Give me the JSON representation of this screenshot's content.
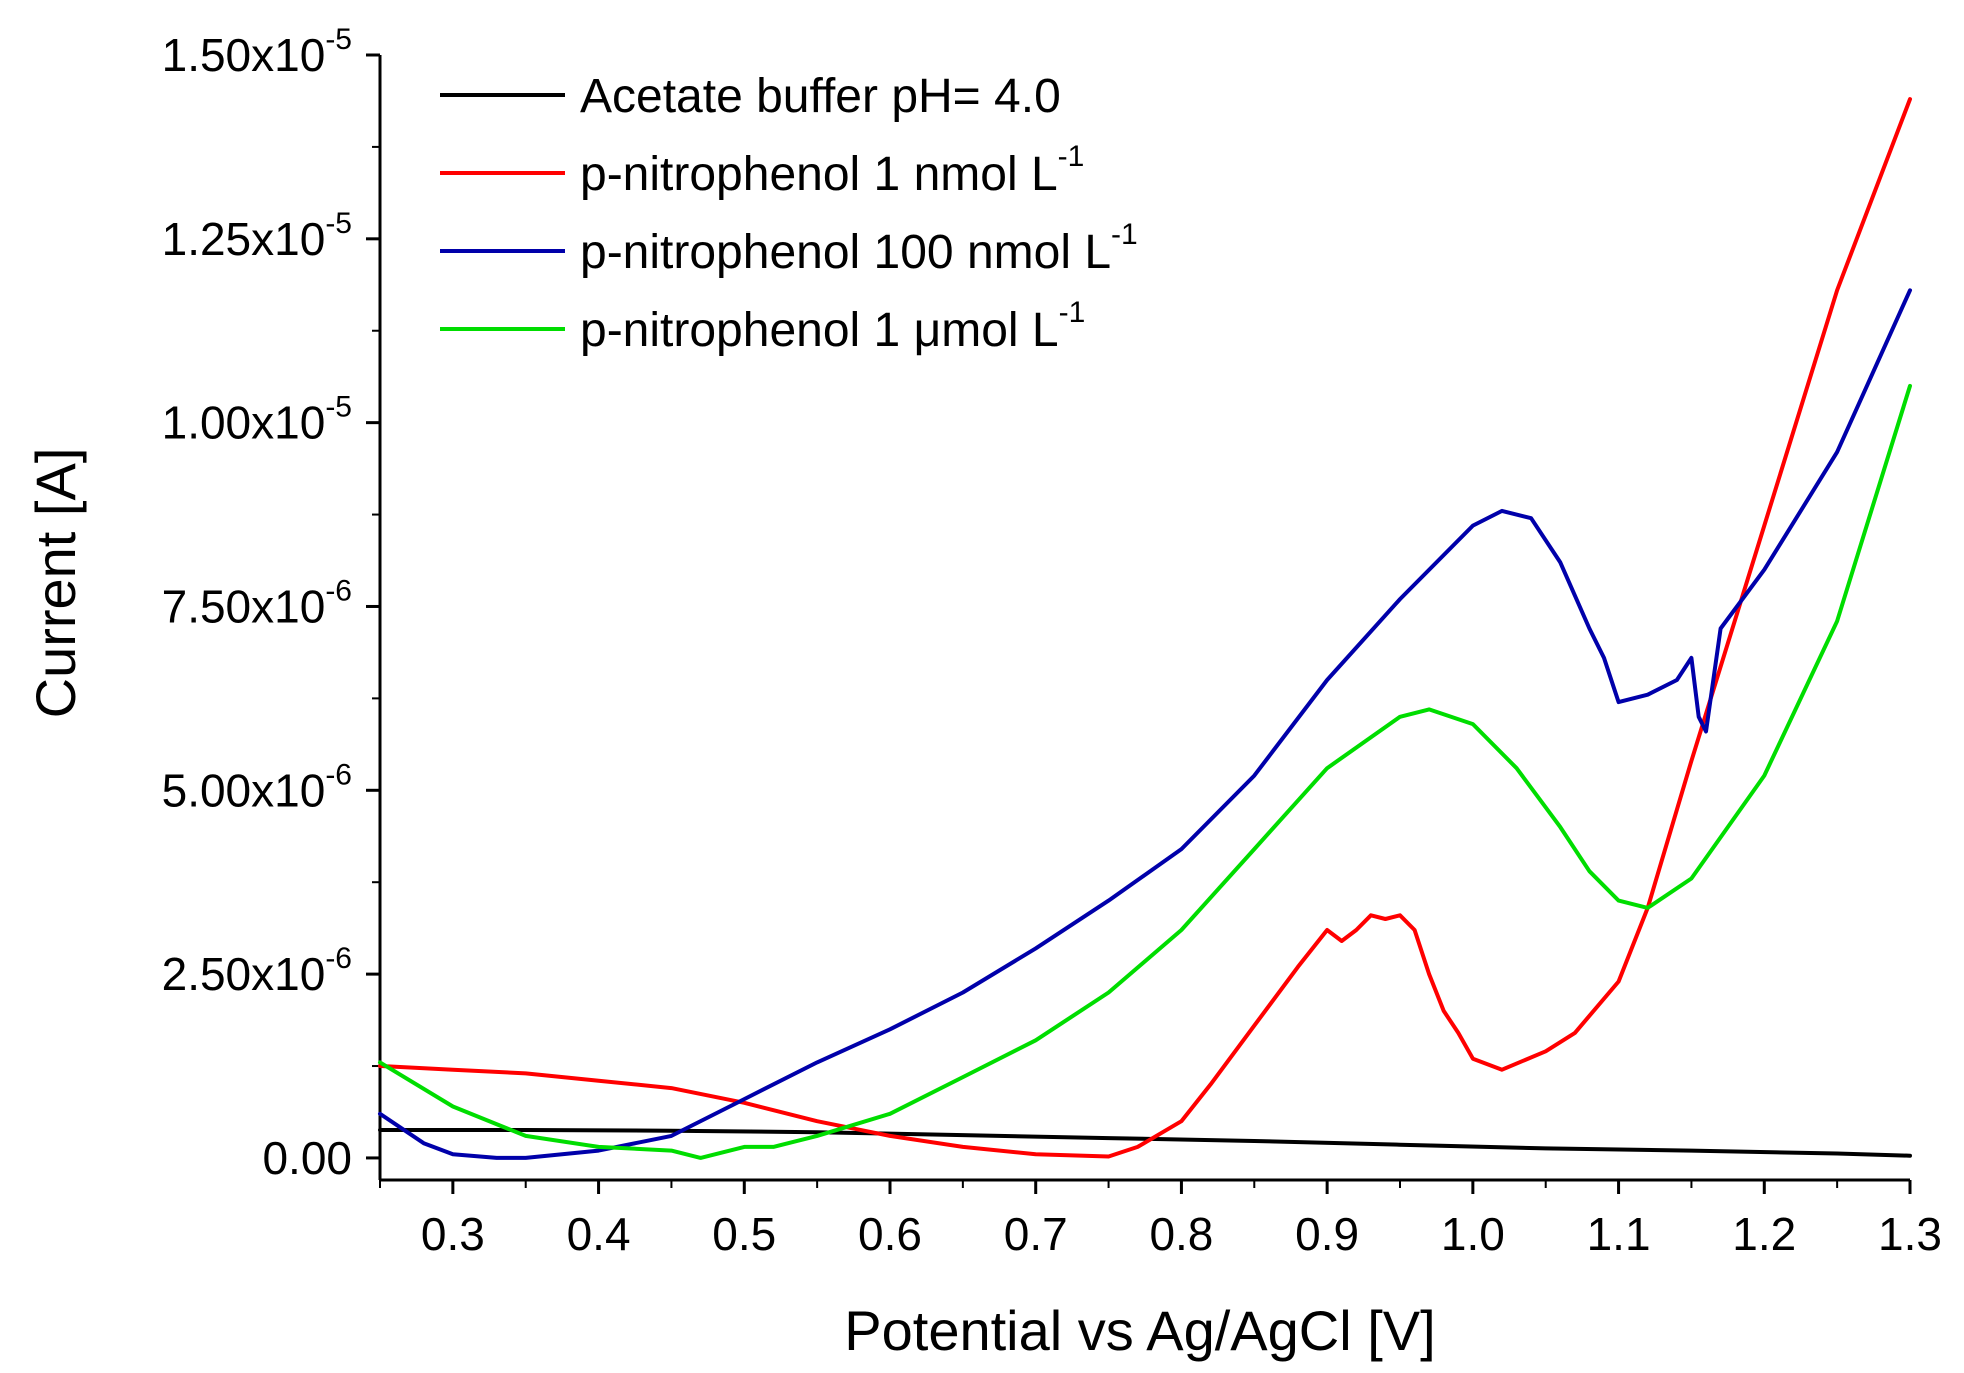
{
  "chart_data": {
    "type": "line",
    "title": "",
    "xlabel": "Potential vs Ag/AgCl [V]",
    "ylabel": "Current [A]",
    "xlim": [
      0.25,
      1.3
    ],
    "ylim": [
      -3e-07,
      1.5e-05
    ],
    "x_ticks": [
      0.3,
      0.4,
      0.5,
      0.6,
      0.7,
      0.8,
      0.9,
      1.0,
      1.1,
      1.2,
      1.3
    ],
    "x_tick_labels": [
      "0.3",
      "0.4",
      "0.5",
      "0.6",
      "0.7",
      "0.8",
      "0.9",
      "1.0",
      "1.1",
      "1.2",
      "1.3"
    ],
    "y_ticks": [
      0,
      2.5e-06,
      5e-06,
      7.5e-06,
      1e-05,
      1.25e-05,
      1.5e-05
    ],
    "y_tick_labels": [
      {
        "mantissa": "0.00",
        "exp": ""
      },
      {
        "mantissa": "2.50x10",
        "exp": "-6"
      },
      {
        "mantissa": "5.00x10",
        "exp": "-6"
      },
      {
        "mantissa": "7.50x10",
        "exp": "-6"
      },
      {
        "mantissa": "1.00x10",
        "exp": "-5"
      },
      {
        "mantissa": "1.25x10",
        "exp": "-5"
      },
      {
        "mantissa": "1.50x10",
        "exp": "-5"
      }
    ],
    "grid": false,
    "legend_position": "top-left",
    "series": [
      {
        "name": "Acetate buffer pH= 4.0",
        "legend_main": "Acetate buffer pH= 4.0",
        "legend_sup": "",
        "color": "#000000",
        "x": [
          0.25,
          0.35,
          0.45,
          0.55,
          0.65,
          0.75,
          0.85,
          0.95,
          1.05,
          1.15,
          1.25,
          1.3
        ],
        "y": [
          3.8e-07,
          3.8e-07,
          3.7e-07,
          3.5e-07,
          3.1e-07,
          2.7e-07,
          2.3e-07,
          1.8e-07,
          1.3e-07,
          1e-07,
          6e-08,
          3e-08
        ]
      },
      {
        "name": "p-nitrophenol 1 nmol L-1",
        "legend_main": "p-nitrophenol 1 nmol L",
        "legend_sup": "-1",
        "color": "#ff0000",
        "x": [
          0.25,
          0.3,
          0.35,
          0.4,
          0.45,
          0.5,
          0.55,
          0.6,
          0.65,
          0.7,
          0.75,
          0.77,
          0.8,
          0.82,
          0.85,
          0.88,
          0.9,
          0.91,
          0.92,
          0.93,
          0.94,
          0.95,
          0.96,
          0.97,
          0.98,
          0.99,
          1.0,
          1.02,
          1.05,
          1.07,
          1.1,
          1.12,
          1.15,
          1.2,
          1.25,
          1.3
        ],
        "y": [
          1.25e-06,
          1.2e-06,
          1.15e-06,
          1.05e-06,
          9.5e-07,
          7.5e-07,
          5e-07,
          3e-07,
          1.5e-07,
          5e-08,
          2e-08,
          1.5e-07,
          5e-07,
          1e-06,
          1.8e-06,
          2.6e-06,
          3.1e-06,
          2.95e-06,
          3.1e-06,
          3.3e-06,
          3.25e-06,
          3.3e-06,
          3.1e-06,
          2.5e-06,
          2e-06,
          1.7e-06,
          1.35e-06,
          1.2e-06,
          1.45e-06,
          1.7e-06,
          2.4e-06,
          3.4e-06,
          5.4e-06,
          8.6e-06,
          1.18e-05,
          1.44e-05
        ]
      },
      {
        "name": "p-nitrophenol 100 nmol L-1",
        "legend_main": "p-nitrophenol 100 nmol L",
        "legend_sup": "-1",
        "color": "#0000aa",
        "x": [
          0.25,
          0.28,
          0.3,
          0.33,
          0.35,
          0.4,
          0.45,
          0.5,
          0.55,
          0.6,
          0.65,
          0.7,
          0.75,
          0.8,
          0.85,
          0.9,
          0.95,
          1.0,
          1.02,
          1.04,
          1.06,
          1.08,
          1.09,
          1.1,
          1.12,
          1.14,
          1.15,
          1.155,
          1.16,
          1.17,
          1.2,
          1.25,
          1.3
        ],
        "y": [
          6e-07,
          2e-07,
          5e-08,
          0,
          0,
          1e-07,
          3e-07,
          8e-07,
          1.3e-06,
          1.75e-06,
          2.25e-06,
          2.85e-06,
          3.5e-06,
          4.2e-06,
          5.2e-06,
          6.5e-06,
          7.6e-06,
          8.6e-06,
          8.8e-06,
          8.7e-06,
          8.1e-06,
          7.2e-06,
          6.8e-06,
          6.2e-06,
          6.3e-06,
          6.5e-06,
          6.8e-06,
          6e-06,
          5.8e-06,
          7.2e-06,
          8e-06,
          9.6e-06,
          1.18e-05
        ]
      },
      {
        "name": "p-nitrophenol 1 μmol L-1",
        "legend_main": "p-nitrophenol 1 μmol L",
        "legend_sup": "-1",
        "color": "#00dd00",
        "x": [
          0.25,
          0.3,
          0.35,
          0.4,
          0.45,
          0.47,
          0.5,
          0.52,
          0.55,
          0.6,
          0.65,
          0.7,
          0.75,
          0.8,
          0.85,
          0.9,
          0.95,
          0.97,
          1.0,
          1.03,
          1.06,
          1.08,
          1.1,
          1.12,
          1.15,
          1.2,
          1.25,
          1.3
        ],
        "y": [
          1.3e-06,
          7e-07,
          3e-07,
          1.5e-07,
          1e-07,
          0,
          1.5e-07,
          1.5e-07,
          3e-07,
          6e-07,
          1.1e-06,
          1.6e-06,
          2.25e-06,
          3.1e-06,
          4.2e-06,
          5.3e-06,
          6e-06,
          6.1e-06,
          5.9e-06,
          5.3e-06,
          4.5e-06,
          3.9e-06,
          3.5e-06,
          3.4e-06,
          3.8e-06,
          5.2e-06,
          7.3e-06,
          1.05e-05
        ]
      }
    ]
  }
}
